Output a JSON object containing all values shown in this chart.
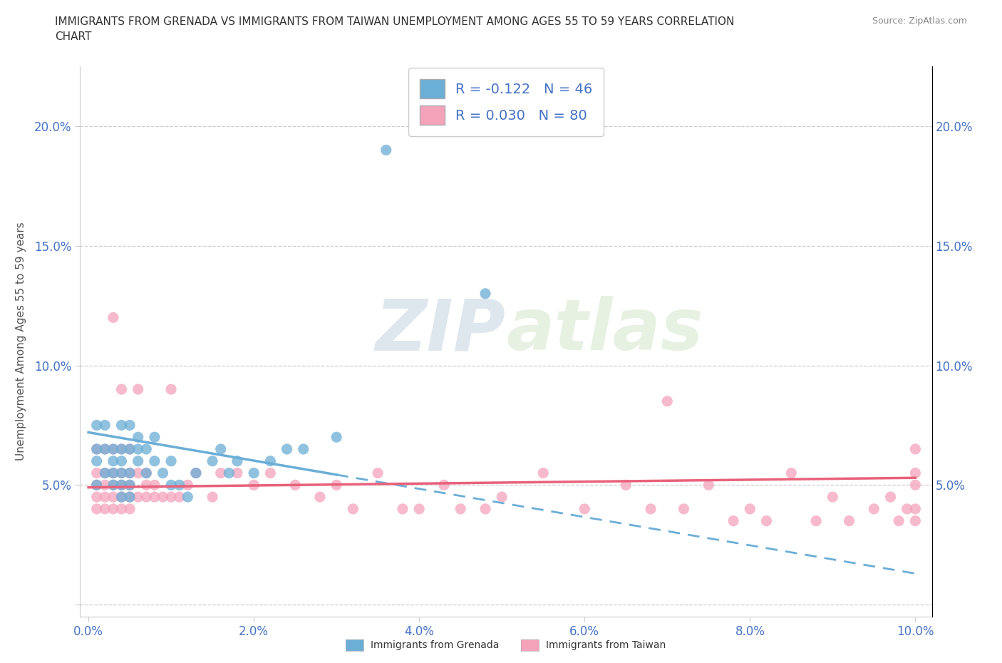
{
  "title_line1": "IMMIGRANTS FROM GRENADA VS IMMIGRANTS FROM TAIWAN UNEMPLOYMENT AMONG AGES 55 TO 59 YEARS CORRELATION",
  "title_line2": "CHART",
  "source": "Source: ZipAtlas.com",
  "ylabel": "Unemployment Among Ages 55 to 59 years",
  "xlim": [
    -0.001,
    0.102
  ],
  "ylim": [
    -0.005,
    0.225
  ],
  "xticks": [
    0.0,
    0.02,
    0.04,
    0.06,
    0.08,
    0.1
  ],
  "yticks": [
    0.0,
    0.05,
    0.1,
    0.15,
    0.2
  ],
  "ytick_labels": [
    "",
    "5.0%",
    "10.0%",
    "15.0%",
    "20.0%"
  ],
  "xtick_labels": [
    "0.0%",
    "2.0%",
    "4.0%",
    "6.0%",
    "8.0%",
    "10.0%"
  ],
  "grenada_color": "#6baed6",
  "taiwan_color": "#f4a3bb",
  "grenada_R": -0.122,
  "grenada_N": 46,
  "taiwan_R": 0.03,
  "taiwan_N": 80,
  "watermark_zip": "ZIP",
  "watermark_atlas": "atlas",
  "background_color": "#ffffff",
  "grid_color": "#c8c8c8",
  "legend_label_1": "Immigrants from Grenada",
  "legend_label_2": "Immigrants from Taiwan",
  "trend_blue_x0": 0.0,
  "trend_blue_y0": 0.072,
  "trend_blue_x1": 0.1,
  "trend_blue_y1": 0.013,
  "trend_blue_solid_end": 0.03,
  "trend_pink_x0": 0.0,
  "trend_pink_y0": 0.049,
  "trend_pink_x1": 0.1,
  "trend_pink_y1": 0.053,
  "grenada_x": [
    0.001,
    0.001,
    0.001,
    0.001,
    0.002,
    0.002,
    0.002,
    0.003,
    0.003,
    0.003,
    0.003,
    0.004,
    0.004,
    0.004,
    0.004,
    0.004,
    0.004,
    0.005,
    0.005,
    0.005,
    0.005,
    0.005,
    0.006,
    0.006,
    0.006,
    0.007,
    0.007,
    0.008,
    0.008,
    0.009,
    0.01,
    0.01,
    0.011,
    0.012,
    0.013,
    0.015,
    0.016,
    0.017,
    0.018,
    0.02,
    0.022,
    0.024,
    0.026,
    0.03,
    0.036,
    0.048
  ],
  "grenada_y": [
    0.05,
    0.06,
    0.065,
    0.075,
    0.055,
    0.065,
    0.075,
    0.05,
    0.055,
    0.06,
    0.065,
    0.045,
    0.05,
    0.055,
    0.06,
    0.065,
    0.075,
    0.045,
    0.05,
    0.055,
    0.065,
    0.075,
    0.06,
    0.065,
    0.07,
    0.055,
    0.065,
    0.06,
    0.07,
    0.055,
    0.05,
    0.06,
    0.05,
    0.045,
    0.055,
    0.06,
    0.065,
    0.055,
    0.06,
    0.055,
    0.06,
    0.065,
    0.065,
    0.07,
    0.19,
    0.13
  ],
  "taiwan_x": [
    0.001,
    0.001,
    0.001,
    0.001,
    0.001,
    0.002,
    0.002,
    0.002,
    0.002,
    0.002,
    0.003,
    0.003,
    0.003,
    0.003,
    0.003,
    0.003,
    0.004,
    0.004,
    0.004,
    0.004,
    0.004,
    0.004,
    0.005,
    0.005,
    0.005,
    0.005,
    0.005,
    0.006,
    0.006,
    0.006,
    0.007,
    0.007,
    0.007,
    0.008,
    0.008,
    0.009,
    0.01,
    0.01,
    0.011,
    0.012,
    0.013,
    0.015,
    0.016,
    0.018,
    0.02,
    0.022,
    0.025,
    0.028,
    0.03,
    0.032,
    0.035,
    0.038,
    0.04,
    0.043,
    0.045,
    0.048,
    0.05,
    0.055,
    0.06,
    0.065,
    0.068,
    0.07,
    0.072,
    0.075,
    0.078,
    0.08,
    0.082,
    0.085,
    0.088,
    0.09,
    0.092,
    0.095,
    0.097,
    0.098,
    0.099,
    0.1,
    0.1,
    0.1,
    0.1,
    0.1
  ],
  "taiwan_y": [
    0.04,
    0.045,
    0.05,
    0.055,
    0.065,
    0.04,
    0.045,
    0.05,
    0.055,
    0.065,
    0.04,
    0.045,
    0.05,
    0.055,
    0.065,
    0.12,
    0.04,
    0.045,
    0.05,
    0.055,
    0.065,
    0.09,
    0.04,
    0.045,
    0.05,
    0.055,
    0.065,
    0.045,
    0.055,
    0.09,
    0.045,
    0.05,
    0.055,
    0.045,
    0.05,
    0.045,
    0.045,
    0.09,
    0.045,
    0.05,
    0.055,
    0.045,
    0.055,
    0.055,
    0.05,
    0.055,
    0.05,
    0.045,
    0.05,
    0.04,
    0.055,
    0.04,
    0.04,
    0.05,
    0.04,
    0.04,
    0.045,
    0.055,
    0.04,
    0.05,
    0.04,
    0.085,
    0.04,
    0.05,
    0.035,
    0.04,
    0.035,
    0.055,
    0.035,
    0.045,
    0.035,
    0.04,
    0.045,
    0.035,
    0.04,
    0.035,
    0.04,
    0.05,
    0.055,
    0.065
  ]
}
